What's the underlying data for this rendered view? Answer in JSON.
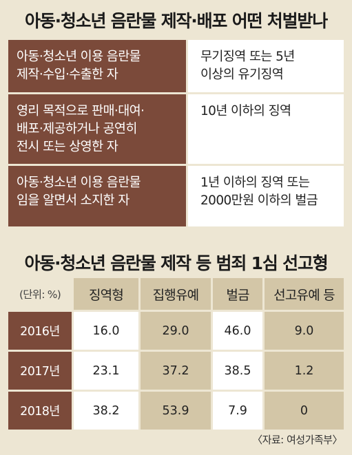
{
  "title1": "아동·청소년 음란물 제작·배포 어떤 처벌받나",
  "punishments": [
    {
      "crime": [
        "아동·청소년 이용 음란물",
        "제작·수입·수출한 자"
      ],
      "penalty": [
        "무기징역 또는 5년",
        "이상의 유기징역"
      ]
    },
    {
      "crime": [
        "영리 목적으로 판매·대여·",
        "배포·제공하거나 공연히",
        "전시 또는 상영한 자"
      ],
      "penalty": [
        "10년 이하의 징역"
      ]
    },
    {
      "crime": [
        "아동·청소년 이용 음란물",
        "임을 알면서 소지한 자"
      ],
      "penalty": [
        "1년 이하의 징역 또는",
        "2000만원 이하의 벌금"
      ]
    }
  ],
  "title2": "아동·청소년 음란물 제작 등 범죄 1심 선고형",
  "chart_data": {
    "type": "table",
    "title": "아동·청소년 음란물 제작 등 범죄 1심 선고형",
    "unit_label": "(단위: %)",
    "columns": [
      "징역형",
      "집행유예",
      "벌금",
      "선고유예 등"
    ],
    "rows": [
      {
        "year": "2016년",
        "values": [
          "16.0",
          "29.0",
          "46.0",
          "9.0"
        ]
      },
      {
        "year": "2017년",
        "values": [
          "23.1",
          "37.2",
          "38.5",
          "1.2"
        ]
      },
      {
        "year": "2018년",
        "values": [
          "38.2",
          "53.9",
          "7.9",
          "0"
        ]
      }
    ]
  },
  "source": "〈자료: 여성가족부〉"
}
